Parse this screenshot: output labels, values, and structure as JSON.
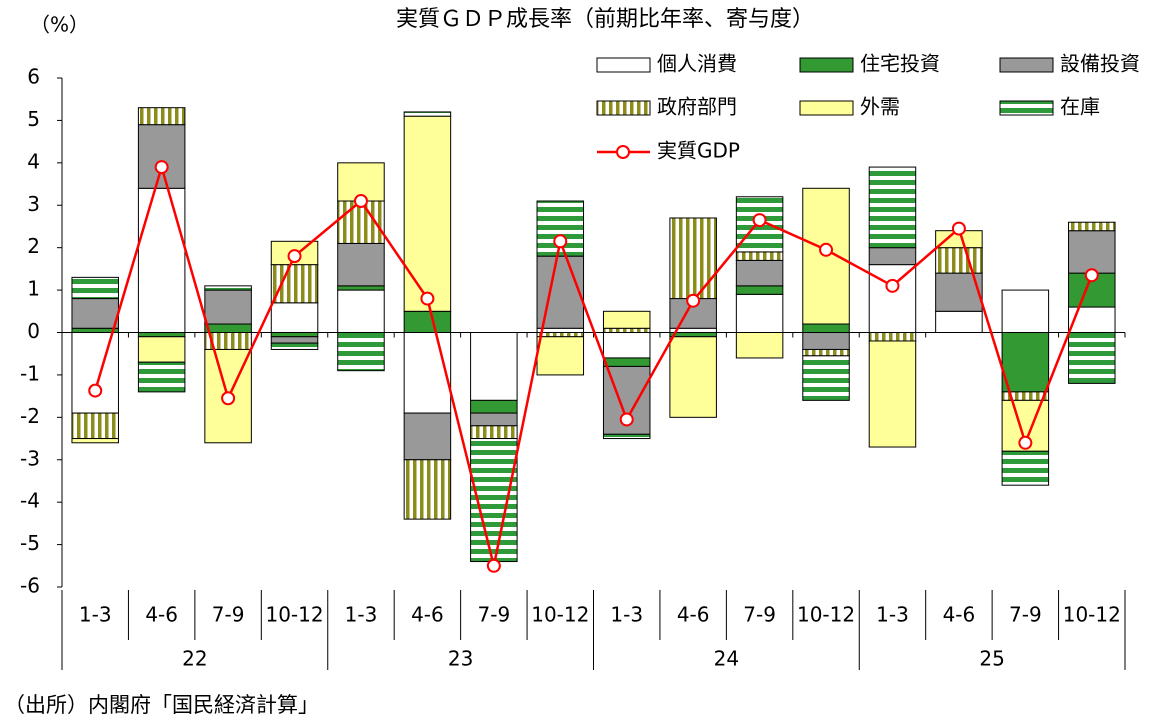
{
  "chart_data": {
    "type": "bar",
    "stacked": true,
    "title": "実質ＧＤＰ成長率（前期比年率、寄与度）",
    "y_label": "（%）",
    "source": "（出所）内閣府「国民経済計算」",
    "categories": [
      "1-3",
      "4-6",
      "7-9",
      "10-12",
      "1-3",
      "4-6",
      "7-9",
      "10-12",
      "1-3",
      "4-6",
      "7-9",
      "10-12",
      "1-3",
      "4-6",
      "7-9",
      "10-12"
    ],
    "year_groups": [
      "22",
      "23",
      "24",
      "25"
    ],
    "ylim": [
      -6,
      6
    ],
    "yticks": [
      -6,
      -5,
      -4,
      -3,
      -2,
      -1,
      0,
      1,
      2,
      3,
      4,
      5,
      6
    ],
    "series": [
      {
        "name": "個人消費",
        "color": "#ffffff",
        "values": [
          -1.9,
          3.4,
          0,
          0.7,
          1.0,
          -1.9,
          -1.6,
          0.1,
          -0.6,
          0.1,
          0.9,
          0,
          1.6,
          0.5,
          1.0,
          0.6
        ]
      },
      {
        "name": "住宅投資",
        "color": "#339933",
        "values": [
          0.1,
          -0.1,
          0.2,
          -0.1,
          0.1,
          0.5,
          -0.3,
          0,
          -0.2,
          -0.1,
          0.2,
          0.2,
          0,
          0,
          -1.4,
          0.8
        ]
      },
      {
        "name": "設備投資",
        "color": "#999999",
        "values": [
          0.7,
          1.5,
          0.8,
          -0.15,
          1.0,
          -1.1,
          -0.3,
          1.7,
          -1.6,
          0.7,
          0.6,
          -0.4,
          0.4,
          0.9,
          0,
          1.0
        ]
      },
      {
        "name": "政府部門",
        "color": "#8c8c1a",
        "hatch": "vertical",
        "values": [
          -0.6,
          0.4,
          -0.4,
          0.9,
          1.0,
          -1.4,
          -0.3,
          -0.1,
          0.1,
          1.9,
          0.2,
          -0.15,
          -0.2,
          0.6,
          -0.2,
          0.2
        ]
      },
      {
        "name": "外需",
        "color": "#ffff99",
        "values": [
          -0.1,
          -0.6,
          -2.2,
          0.55,
          0.9,
          4.6,
          0,
          -0.9,
          0.4,
          -1.9,
          -0.6,
          3.2,
          -2.5,
          0.4,
          -1.2,
          0
        ]
      },
      {
        "name": "在庫",
        "color": "#2e9a3a",
        "hatch": "horizontal",
        "values": [
          0.5,
          -0.7,
          0.1,
          -0.15,
          -0.9,
          0.1,
          -2.9,
          1.3,
          -0.1,
          0,
          1.3,
          -1.05,
          1.9,
          0,
          -0.8,
          -1.2
        ]
      },
      {
        "name": "実質GDP",
        "type": "line",
        "color": "#ff0000",
        "values": [
          -1.37,
          3.9,
          -1.55,
          1.8,
          3.1,
          0.8,
          -5.5,
          2.15,
          -2.05,
          0.75,
          2.65,
          1.95,
          1.1,
          2.45,
          -2.6,
          1.35
        ]
      }
    ]
  }
}
